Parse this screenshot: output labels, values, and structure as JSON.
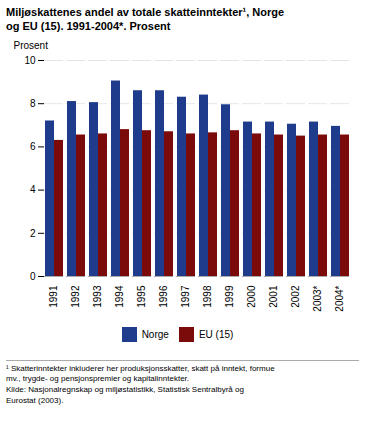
{
  "chart_data": {
    "type": "bar",
    "title": "Miljøskattenes andel av totale skatteinntekter¹, Norge\nog EU (15). 1991-2004*. Prosent",
    "y_label": "Prosent",
    "caption": "¹ Skatterinntekter inkluderer her produksjonsskatter, skatt på inntekt, formue\nmv., trygde- og pensjonspremier og kapitalinntekter.\nKilde: Nasjonalregnskap og miljøstatistikk, Statistisk Sentralbyrå og\nEurostat (2003).",
    "categories": [
      "1991",
      "1992",
      "1993",
      "1994",
      "1995",
      "1996",
      "1997",
      "1998",
      "1999",
      "2000",
      "2001",
      "2002",
      "2003*",
      "2004*"
    ],
    "series": [
      {
        "name": "Norge",
        "color": "#1f3b8c",
        "values": [
          7.2,
          8.1,
          8.05,
          9.05,
          8.6,
          8.6,
          8.3,
          8.4,
          7.95,
          7.15,
          7.15,
          7.05,
          7.15,
          6.95
        ]
      },
      {
        "name": "EU (15)",
        "color": "#7b0a0a",
        "values": [
          6.3,
          6.55,
          6.6,
          6.8,
          6.75,
          6.7,
          6.6,
          6.65,
          6.75,
          6.6,
          6.55,
          6.5,
          6.55,
          6.55
        ]
      }
    ],
    "ylim": [
      0,
      10
    ],
    "yticks": [
      0,
      2,
      4,
      6,
      8,
      10
    ],
    "grid": true,
    "legend": "bottom"
  }
}
